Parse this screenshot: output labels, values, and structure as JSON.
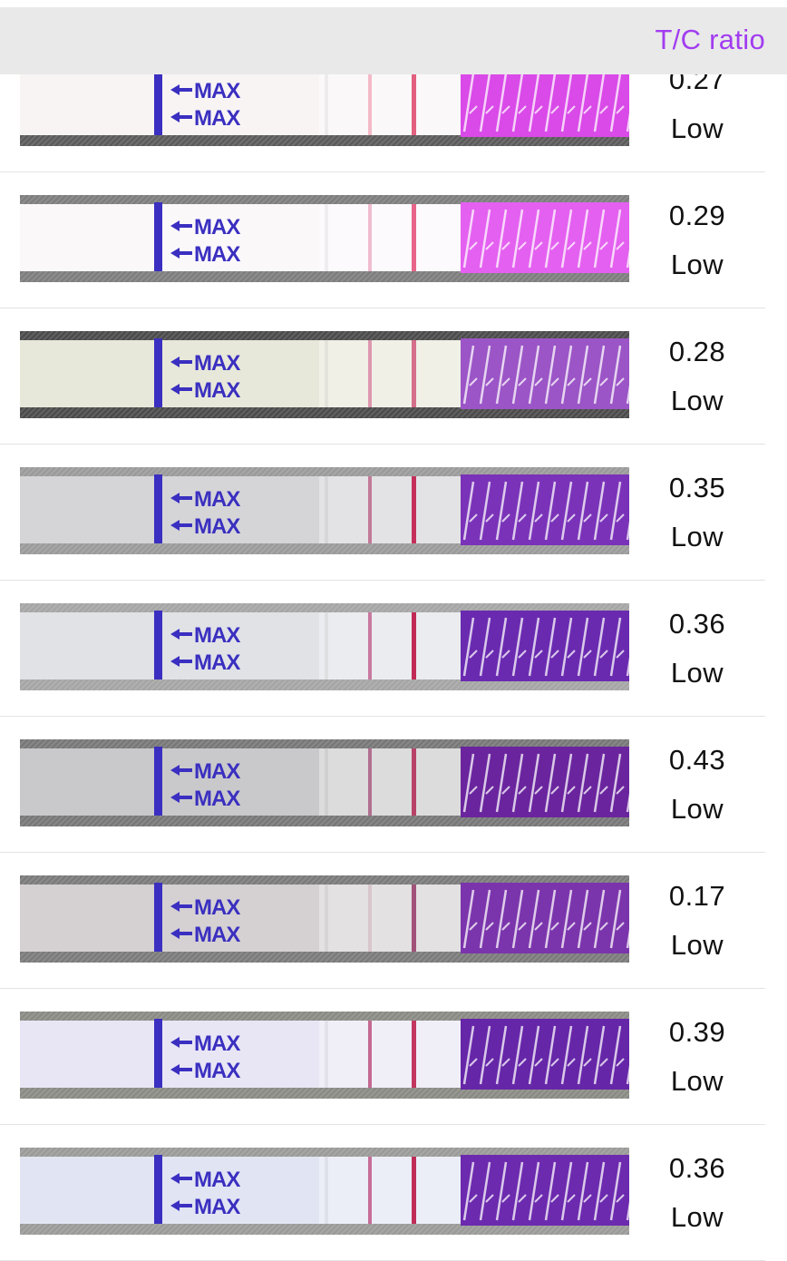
{
  "header": {
    "title": "T/C ratio"
  },
  "strip_marking": "MAX",
  "rows": [
    {
      "ratio": "0.27",
      "level": "Low",
      "bg": "#5a5a5a",
      "body": "#f8f4f4",
      "hatch": "#d94ae8",
      "cline": "#e3607e",
      "tline": "#f4b9c8"
    },
    {
      "ratio": "0.29",
      "level": "Low",
      "bg": "#7d7d7d",
      "body": "#fbf8fa",
      "hatch": "#e460f0",
      "cline": "#e8658a",
      "tline": "#f0bcd0"
    },
    {
      "ratio": "0.28",
      "level": "Low",
      "bg": "#4a4a4a",
      "body": "#e8e8da",
      "hatch": "#9b55c6",
      "cline": "#d46e8a",
      "tline": "#de98b0"
    },
    {
      "ratio": "0.35",
      "level": "Low",
      "bg": "#9a9a9a",
      "body": "#d5d5d8",
      "hatch": "#7a33b8",
      "cline": "#c5305a",
      "tline": "#c27a98"
    },
    {
      "ratio": "0.36",
      "level": "Low",
      "bg": "#a5a5a5",
      "body": "#e0e2e6",
      "hatch": "#6a2ab0",
      "cline": "#c12a55",
      "tline": "#c879a0"
    },
    {
      "ratio": "0.43",
      "level": "Low",
      "bg": "#777777",
      "body": "#c9c9cb",
      "hatch": "#6a259e",
      "cline": "#b84268",
      "tline": "#b07090"
    },
    {
      "ratio": "0.17",
      "level": "Low",
      "bg": "#7a7a7a",
      "body": "#d5d1d3",
      "hatch": "#7b35ac",
      "cline": "#a2537a",
      "tline": "#d8c6cc"
    },
    {
      "ratio": "0.39",
      "level": "Low",
      "bg": "#8a8a84",
      "body": "#e8e6f4",
      "hatch": "#6626a8",
      "cline": "#c23660",
      "tline": "#c46992"
    },
    {
      "ratio": "0.36",
      "level": "Low",
      "bg": "#9a9a98",
      "body": "#e1e5f3",
      "hatch": "#6c2aae",
      "cline": "#bf2d58",
      "tline": "#c76d98"
    }
  ]
}
